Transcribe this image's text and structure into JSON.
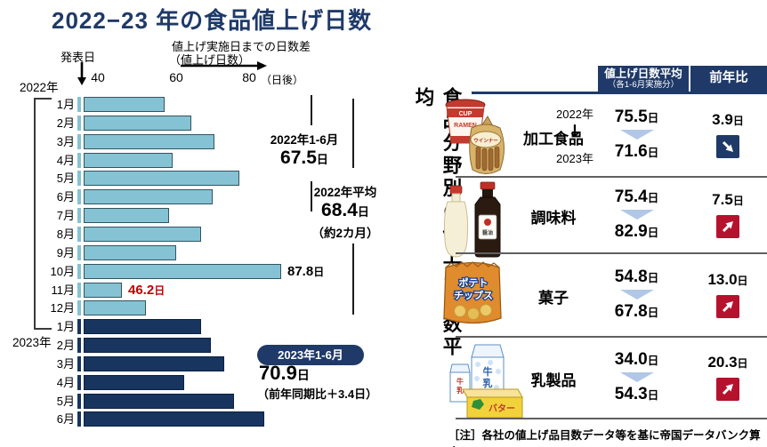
{
  "title": "2022−23 年の食品値上げ日数",
  "colors": {
    "navy": "#1f3a68",
    "bar_dark": "#17355f",
    "bar_light": "#85c2d4",
    "red_box": "#b5122e",
    "red_text": "#c00000",
    "chevron": "#b0c7e6"
  },
  "chart": {
    "publish_label": "発表日",
    "diff_label_1": "値上げ実施日までの日数差",
    "diff_label_2": "（値上げ日数）",
    "year_2022": "2022年",
    "year_2023": "2023年"
  },
  "chart_data": {
    "type": "bar",
    "orientation": "horizontal",
    "unit": "日",
    "x_axis": {
      "ticks": [
        "40",
        "60",
        "80"
      ],
      "unit_label": "（日後）",
      "visible_range_start_day": 36
    },
    "series": [
      {
        "name": "2022年",
        "color_key": "bar_light",
        "categories": [
          "1月",
          "2月",
          "3月",
          "4月",
          "5月",
          "6月",
          "7月",
          "8月",
          "9月",
          "10月",
          "11月",
          "12月"
        ],
        "values": [
          57.5,
          64.5,
          70.5,
          59.5,
          77.0,
          70.0,
          58.5,
          67.0,
          60.5,
          87.8,
          46.2,
          52.5
        ]
      },
      {
        "name": "2023年",
        "color_key": "bar_dark",
        "categories": [
          "1月",
          "2月",
          "3月",
          "4月",
          "5月",
          "6月"
        ],
        "values": [
          67.0,
          69.5,
          73.0,
          62.5,
          75.5,
          83.5
        ]
      }
    ],
    "value_labels": [
      {
        "series": 0,
        "index": 9,
        "text": "87.8",
        "unit": "日",
        "color": "#000000"
      },
      {
        "series": 0,
        "index": 10,
        "text": "46.2",
        "unit": "日",
        "color": "#c00000"
      }
    ],
    "summary": [
      {
        "label": "2022年1-6月",
        "value": "67.5",
        "unit": "日",
        "note": ""
      },
      {
        "label": "2022年平均",
        "value": "68.4",
        "unit": "日",
        "note": "（約2カ月）"
      },
      {
        "label": "2023年1-6月",
        "value": "70.9",
        "unit": "日",
        "note": "（前年同期比＋3.4日）"
      }
    ]
  },
  "panel": {
    "vertical_title": "食品分野別の値上げ日数平均",
    "header": {
      "col1_line1": "値上げ日数平均",
      "col1_line2": "（各1-6月実施分）",
      "col2": "前年比"
    },
    "rows": [
      {
        "category": "加工食品",
        "icon": "cup-ramen-sausage",
        "icon_texts": [
          "CUP",
          "RAMEN",
          "ウインナー"
        ],
        "year_from": "2022年",
        "year_to": "2023年",
        "v2022": "75.5",
        "v2023": "71.6",
        "diff": "3.9",
        "unit": "日",
        "trend": "down"
      },
      {
        "category": "調味料",
        "icon": "sauce-bottles",
        "icon_texts": [
          "醤油"
        ],
        "v2022": "75.4",
        "v2023": "82.9",
        "diff": "7.5",
        "unit": "日",
        "trend": "up"
      },
      {
        "category": "菓子",
        "icon": "potato-chips",
        "icon_texts": [
          "ポテト",
          "チップス"
        ],
        "v2022": "54.8",
        "v2023": "67.8",
        "diff": "13.0",
        "unit": "日",
        "trend": "up"
      },
      {
        "category": "乳製品",
        "icon": "milk-butter",
        "icon_texts": [
          "牛乳",
          "バター"
        ],
        "v2022": "34.0",
        "v2023": "54.3",
        "diff": "20.3",
        "unit": "日",
        "trend": "up"
      }
    ],
    "note": "［注］各社の値上げ品目数データ等を基に帝国データバンク算出"
  }
}
